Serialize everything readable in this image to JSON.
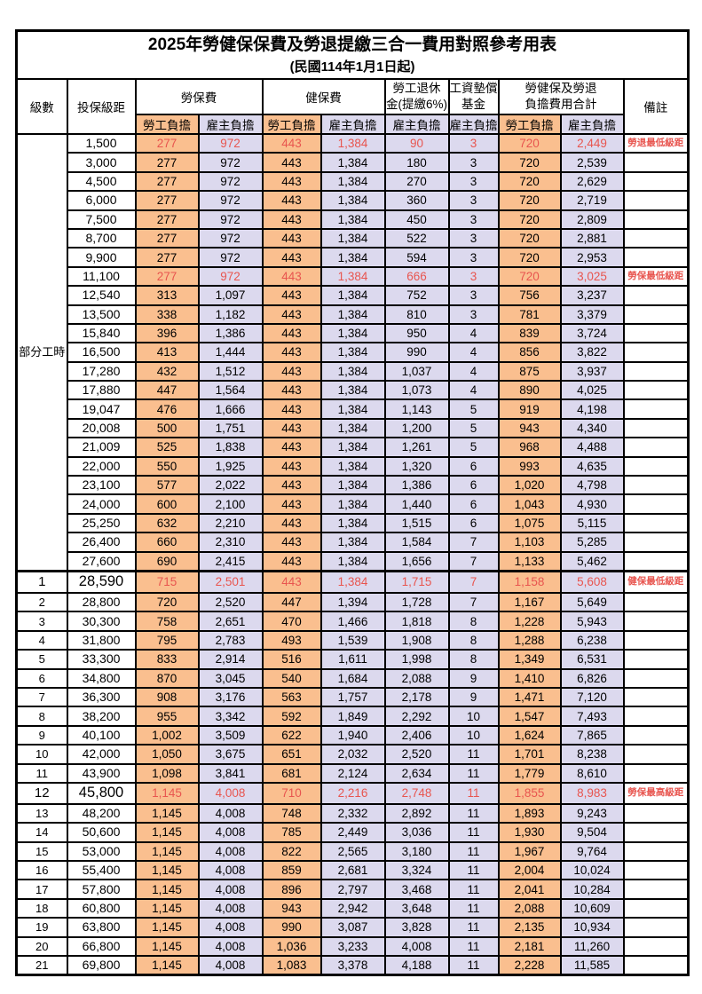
{
  "title": "2025年勞健保保費及勞退提繳三合一費用對照參考用表",
  "subtitle": "(民國114年1月1日起)",
  "colors": {
    "employee_bg": "#fabf8f",
    "employer_bg": "#dcd9ee",
    "highlight_text": "#e8554f",
    "border": "#000000"
  },
  "columns": {
    "level": "級數",
    "bracket": "投保級距",
    "labor_fee": "勞保費",
    "health_fee": "健保費",
    "pension": [
      "勞工退休",
      "金(提繳6%)"
    ],
    "wage_fund": [
      "工資墊償",
      "基金"
    ],
    "combined": [
      "勞健保及勞退",
      "負擔費用合計"
    ],
    "note": "備註",
    "employee_share": "勞工負擔",
    "employer_share": "雇主負擔"
  },
  "part_time_label": "部分工時",
  "part_time_row_count": 23,
  "rows": [
    {
      "level": "",
      "bracket": "1,500",
      "values": [
        "277",
        "972",
        "443",
        "1,384",
        "90",
        "3",
        "720",
        "2,449"
      ],
      "note": "勞退最低級距",
      "highlight": true
    },
    {
      "level": "",
      "bracket": "3,000",
      "values": [
        "277",
        "972",
        "443",
        "1,384",
        "180",
        "3",
        "720",
        "2,539"
      ],
      "note": ""
    },
    {
      "level": "",
      "bracket": "4,500",
      "values": [
        "277",
        "972",
        "443",
        "1,384",
        "270",
        "3",
        "720",
        "2,629"
      ],
      "note": ""
    },
    {
      "level": "",
      "bracket": "6,000",
      "values": [
        "277",
        "972",
        "443",
        "1,384",
        "360",
        "3",
        "720",
        "2,719"
      ],
      "note": ""
    },
    {
      "level": "",
      "bracket": "7,500",
      "values": [
        "277",
        "972",
        "443",
        "1,384",
        "450",
        "3",
        "720",
        "2,809"
      ],
      "note": ""
    },
    {
      "level": "",
      "bracket": "8,700",
      "values": [
        "277",
        "972",
        "443",
        "1,384",
        "522",
        "3",
        "720",
        "2,881"
      ],
      "note": ""
    },
    {
      "level": "",
      "bracket": "9,900",
      "values": [
        "277",
        "972",
        "443",
        "1,384",
        "594",
        "3",
        "720",
        "2,953"
      ],
      "note": ""
    },
    {
      "level": "",
      "bracket": "11,100",
      "values": [
        "277",
        "972",
        "443",
        "1,384",
        "666",
        "3",
        "720",
        "3,025"
      ],
      "note": "勞保最低級距",
      "highlight": true
    },
    {
      "level": "",
      "bracket": "12,540",
      "values": [
        "313",
        "1,097",
        "443",
        "1,384",
        "752",
        "3",
        "756",
        "3,237"
      ],
      "note": ""
    },
    {
      "level": "",
      "bracket": "13,500",
      "values": [
        "338",
        "1,182",
        "443",
        "1,384",
        "810",
        "3",
        "781",
        "3,379"
      ],
      "note": ""
    },
    {
      "level": "",
      "bracket": "15,840",
      "values": [
        "396",
        "1,386",
        "443",
        "1,384",
        "950",
        "4",
        "839",
        "3,724"
      ],
      "note": ""
    },
    {
      "level": "",
      "bracket": "16,500",
      "values": [
        "413",
        "1,444",
        "443",
        "1,384",
        "990",
        "4",
        "856",
        "3,822"
      ],
      "note": ""
    },
    {
      "level": "",
      "bracket": "17,280",
      "values": [
        "432",
        "1,512",
        "443",
        "1,384",
        "1,037",
        "4",
        "875",
        "3,937"
      ],
      "note": ""
    },
    {
      "level": "",
      "bracket": "17,880",
      "values": [
        "447",
        "1,564",
        "443",
        "1,384",
        "1,073",
        "4",
        "890",
        "4,025"
      ],
      "note": ""
    },
    {
      "level": "",
      "bracket": "19,047",
      "values": [
        "476",
        "1,666",
        "443",
        "1,384",
        "1,143",
        "5",
        "919",
        "4,198"
      ],
      "note": ""
    },
    {
      "level": "",
      "bracket": "20,008",
      "values": [
        "500",
        "1,751",
        "443",
        "1,384",
        "1,200",
        "5",
        "943",
        "4,340"
      ],
      "note": ""
    },
    {
      "level": "",
      "bracket": "21,009",
      "values": [
        "525",
        "1,838",
        "443",
        "1,384",
        "1,261",
        "5",
        "968",
        "4,488"
      ],
      "note": ""
    },
    {
      "level": "",
      "bracket": "22,000",
      "values": [
        "550",
        "1,925",
        "443",
        "1,384",
        "1,320",
        "6",
        "993",
        "4,635"
      ],
      "note": ""
    },
    {
      "level": "",
      "bracket": "23,100",
      "values": [
        "577",
        "2,022",
        "443",
        "1,384",
        "1,386",
        "6",
        "1,020",
        "4,798"
      ],
      "note": ""
    },
    {
      "level": "",
      "bracket": "24,000",
      "values": [
        "600",
        "2,100",
        "443",
        "1,384",
        "1,440",
        "6",
        "1,043",
        "4,930"
      ],
      "note": ""
    },
    {
      "level": "",
      "bracket": "25,250",
      "values": [
        "632",
        "2,210",
        "443",
        "1,384",
        "1,515",
        "6",
        "1,075",
        "5,115"
      ],
      "note": ""
    },
    {
      "level": "",
      "bracket": "26,400",
      "values": [
        "660",
        "2,310",
        "443",
        "1,384",
        "1,584",
        "7",
        "1,103",
        "5,285"
      ],
      "note": ""
    },
    {
      "level": "",
      "bracket": "27,600",
      "values": [
        "690",
        "2,415",
        "443",
        "1,384",
        "1,656",
        "7",
        "1,133",
        "5,462"
      ],
      "note": ""
    },
    {
      "level": "1",
      "bracket": "28,590",
      "values": [
        "715",
        "2,501",
        "443",
        "1,384",
        "1,715",
        "7",
        "1,158",
        "5,608"
      ],
      "note": "健保最低級距",
      "highlight": true,
      "big": true,
      "section": true
    },
    {
      "level": "2",
      "bracket": "28,800",
      "values": [
        "720",
        "2,520",
        "447",
        "1,394",
        "1,728",
        "7",
        "1,167",
        "5,649"
      ],
      "note": ""
    },
    {
      "level": "3",
      "bracket": "30,300",
      "values": [
        "758",
        "2,651",
        "470",
        "1,466",
        "1,818",
        "8",
        "1,228",
        "5,943"
      ],
      "note": ""
    },
    {
      "level": "4",
      "bracket": "31,800",
      "values": [
        "795",
        "2,783",
        "493",
        "1,539",
        "1,908",
        "8",
        "1,288",
        "6,238"
      ],
      "note": ""
    },
    {
      "level": "5",
      "bracket": "33,300",
      "values": [
        "833",
        "2,914",
        "516",
        "1,611",
        "1,998",
        "8",
        "1,349",
        "6,531"
      ],
      "note": ""
    },
    {
      "level": "6",
      "bracket": "34,800",
      "values": [
        "870",
        "3,045",
        "540",
        "1,684",
        "2,088",
        "9",
        "1,410",
        "6,826"
      ],
      "note": ""
    },
    {
      "level": "7",
      "bracket": "36,300",
      "values": [
        "908",
        "3,176",
        "563",
        "1,757",
        "2,178",
        "9",
        "1,471",
        "7,120"
      ],
      "note": ""
    },
    {
      "level": "8",
      "bracket": "38,200",
      "values": [
        "955",
        "3,342",
        "592",
        "1,849",
        "2,292",
        "10",
        "1,547",
        "7,493"
      ],
      "note": ""
    },
    {
      "level": "9",
      "bracket": "40,100",
      "values": [
        "1,002",
        "3,509",
        "622",
        "1,940",
        "2,406",
        "10",
        "1,624",
        "7,865"
      ],
      "note": ""
    },
    {
      "level": "10",
      "bracket": "42,000",
      "values": [
        "1,050",
        "3,675",
        "651",
        "2,032",
        "2,520",
        "11",
        "1,701",
        "8,238"
      ],
      "note": ""
    },
    {
      "level": "11",
      "bracket": "43,900",
      "values": [
        "1,098",
        "3,841",
        "681",
        "2,124",
        "2,634",
        "11",
        "1,779",
        "8,610"
      ],
      "note": ""
    },
    {
      "level": "12",
      "bracket": "45,800",
      "values": [
        "1,145",
        "4,008",
        "710",
        "2,216",
        "2,748",
        "11",
        "1,855",
        "8,983"
      ],
      "note": "勞保最高級距",
      "highlight": true,
      "big": true
    },
    {
      "level": "13",
      "bracket": "48,200",
      "values": [
        "1,145",
        "4,008",
        "748",
        "2,332",
        "2,892",
        "11",
        "1,893",
        "9,243"
      ],
      "note": ""
    },
    {
      "level": "14",
      "bracket": "50,600",
      "values": [
        "1,145",
        "4,008",
        "785",
        "2,449",
        "3,036",
        "11",
        "1,930",
        "9,504"
      ],
      "note": ""
    },
    {
      "level": "15",
      "bracket": "53,000",
      "values": [
        "1,145",
        "4,008",
        "822",
        "2,565",
        "3,180",
        "11",
        "1,967",
        "9,764"
      ],
      "note": ""
    },
    {
      "level": "16",
      "bracket": "55,400",
      "values": [
        "1,145",
        "4,008",
        "859",
        "2,681",
        "3,324",
        "11",
        "2,004",
        "10,024"
      ],
      "note": ""
    },
    {
      "level": "17",
      "bracket": "57,800",
      "values": [
        "1,145",
        "4,008",
        "896",
        "2,797",
        "3,468",
        "11",
        "2,041",
        "10,284"
      ],
      "note": ""
    },
    {
      "level": "18",
      "bracket": "60,800",
      "values": [
        "1,145",
        "4,008",
        "943",
        "2,942",
        "3,648",
        "11",
        "2,088",
        "10,609"
      ],
      "note": ""
    },
    {
      "level": "19",
      "bracket": "63,800",
      "values": [
        "1,145",
        "4,008",
        "990",
        "3,087",
        "3,828",
        "11",
        "2,135",
        "10,934"
      ],
      "note": ""
    },
    {
      "level": "20",
      "bracket": "66,800",
      "values": [
        "1,145",
        "4,008",
        "1,036",
        "3,233",
        "4,008",
        "11",
        "2,181",
        "11,260"
      ],
      "note": ""
    },
    {
      "level": "21",
      "bracket": "69,800",
      "values": [
        "1,145",
        "4,008",
        "1,083",
        "3,378",
        "4,188",
        "11",
        "2,228",
        "11,585"
      ],
      "note": ""
    }
  ]
}
